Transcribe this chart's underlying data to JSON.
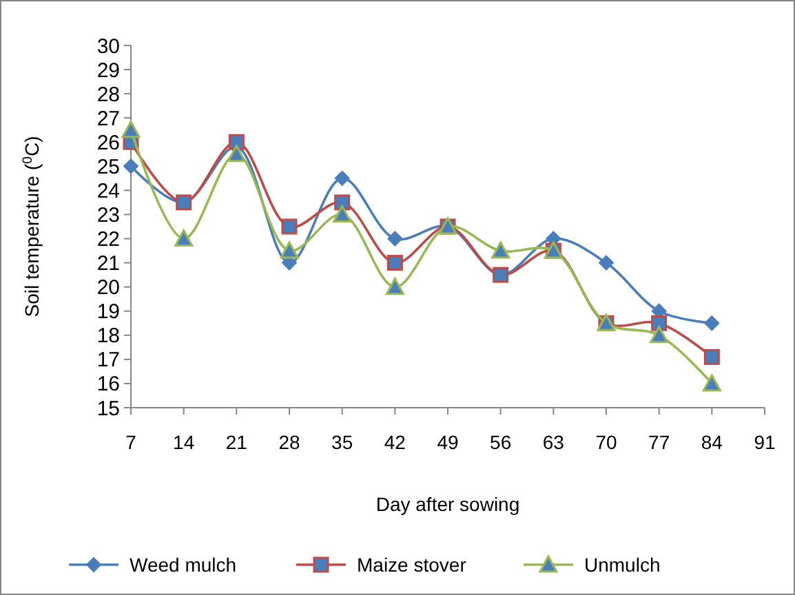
{
  "chart_data": {
    "type": "line",
    "xlabel": "Day after sowing",
    "ylabel": "Soil temperature ($^{0}$C)",
    "x": [
      7,
      14,
      21,
      28,
      35,
      42,
      49,
      56,
      63,
      70,
      77,
      84
    ],
    "xlim": [
      7,
      91
    ],
    "xticks": [
      7,
      14,
      21,
      28,
      35,
      42,
      49,
      56,
      63,
      70,
      77,
      84,
      91
    ],
    "ylim": [
      15,
      30
    ],
    "yticks": [
      15,
      16,
      17,
      18,
      19,
      20,
      21,
      22,
      23,
      24,
      25,
      26,
      27,
      28,
      29,
      30
    ],
    "grid": false,
    "legend": "bottom",
    "series": [
      {
        "name": "Weed mulch",
        "color": "#4a7ebb",
        "marker": "diamond",
        "values": [
          25,
          23.5,
          25.8,
          21,
          24.5,
          22,
          22.5,
          20.5,
          22,
          21,
          19,
          18.5
        ]
      },
      {
        "name": "Maize stover",
        "color": "#be4b48",
        "marker": "square",
        "values": [
          26,
          23.5,
          26,
          22.5,
          23.5,
          21,
          22.5,
          20.5,
          21.5,
          18.5,
          18.5,
          17.1
        ]
      },
      {
        "name": "Unmulch",
        "color": "#98b954",
        "marker": "triangle",
        "values": [
          26.5,
          22,
          25.5,
          21.5,
          23,
          20,
          22.5,
          21.5,
          21.5,
          18.5,
          18,
          16
        ]
      }
    ]
  }
}
